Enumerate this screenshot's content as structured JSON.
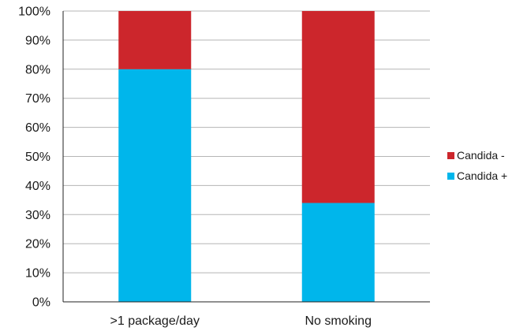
{
  "chart_data": {
    "type": "bar",
    "stacked": true,
    "percent_stacked": true,
    "categories": [
      ">1 package/day",
      "No smoking"
    ],
    "series": [
      {
        "name": "Candida +",
        "color": "#00b6eb",
        "values": [
          80,
          34
        ]
      },
      {
        "name": "Candida -",
        "color": "#cc262c",
        "values": [
          20,
          66
        ]
      }
    ],
    "ylim": [
      0,
      100
    ],
    "y_ticks": [
      "0%",
      "10%",
      "20%",
      "30%",
      "40%",
      "50%",
      "60%",
      "70%",
      "80%",
      "90%",
      "100%"
    ],
    "grid": true,
    "legend_position": "right",
    "legend_order": [
      "Candida -",
      "Candida +"
    ]
  }
}
